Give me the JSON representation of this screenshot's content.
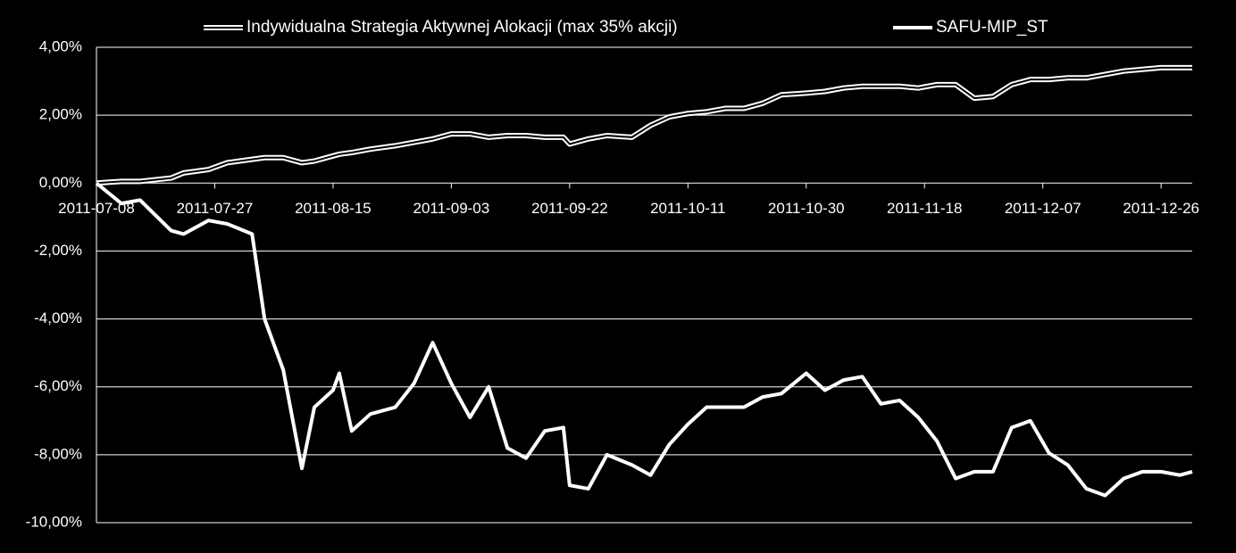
{
  "chart_data": {
    "type": "line",
    "background": "#000000",
    "x": [
      "2011-07-08",
      "2011-07-12",
      "2011-07-15",
      "2011-07-20",
      "2011-07-22",
      "2011-07-26",
      "2011-07-29",
      "2011-08-02",
      "2011-08-04",
      "2011-08-07",
      "2011-08-10",
      "2011-08-12",
      "2011-08-15",
      "2011-08-16",
      "2011-08-18",
      "2011-08-21",
      "2011-08-25",
      "2011-08-28",
      "2011-08-31",
      "2011-09-03",
      "2011-09-06",
      "2011-09-09",
      "2011-09-12",
      "2011-09-15",
      "2011-09-18",
      "2011-09-21",
      "2011-09-22",
      "2011-09-25",
      "2011-09-28",
      "2011-10-02",
      "2011-10-05",
      "2011-10-08",
      "2011-10-11",
      "2011-10-14",
      "2011-10-17",
      "2011-10-20",
      "2011-10-23",
      "2011-10-26",
      "2011-10-30",
      "2011-11-02",
      "2011-11-05",
      "2011-11-08",
      "2011-11-11",
      "2011-11-14",
      "2011-11-17",
      "2011-11-20",
      "2011-11-23",
      "2011-11-26",
      "2011-11-29",
      "2011-12-02",
      "2011-12-05",
      "2011-12-08",
      "2011-12-11",
      "2011-12-14",
      "2011-12-17",
      "2011-12-20",
      "2011-12-23",
      "2011-12-26",
      "2011-12-29",
      "2011-12-31"
    ],
    "series": [
      {
        "name": "Indywidualna Strategia Aktywnej Alokacji (max 35% akcji)",
        "color": "#ffffff",
        "line_style": "double",
        "values": [
          0,
          0.05,
          0.05,
          0.15,
          0.3,
          0.4,
          0.6,
          0.7,
          0.75,
          0.75,
          0.6,
          0.65,
          0.8,
          0.85,
          0.9,
          1.0,
          1.1,
          1.2,
          1.3,
          1.45,
          1.45,
          1.35,
          1.4,
          1.4,
          1.35,
          1.35,
          1.15,
          1.3,
          1.4,
          1.35,
          1.7,
          1.95,
          2.05,
          2.1,
          2.2,
          2.2,
          2.35,
          2.6,
          2.65,
          2.7,
          2.8,
          2.85,
          2.85,
          2.85,
          2.8,
          2.9,
          2.9,
          2.5,
          2.55,
          2.9,
          3.05,
          3.05,
          3.1,
          3.1,
          3.2,
          3.3,
          3.35,
          3.4,
          3.4,
          3.4
        ]
      },
      {
        "name": "SAFU-MIP_ST",
        "color": "#ffffff",
        "line_style": "solid",
        "values": [
          0,
          -0.6,
          -0.5,
          -1.4,
          -1.5,
          -1.1,
          -1.2,
          -1.5,
          -4.0,
          -5.5,
          -8.4,
          -6.6,
          -6.1,
          -5.6,
          -7.3,
          -6.8,
          -6.6,
          -5.9,
          -4.7,
          -5.9,
          -6.9,
          -6.0,
          -7.8,
          -8.1,
          -7.3,
          -7.2,
          -8.9,
          -9.0,
          -8.0,
          -8.3,
          -8.6,
          -7.7,
          -7.1,
          -6.6,
          -6.6,
          -6.6,
          -6.3,
          -6.2,
          -5.6,
          -6.1,
          -5.8,
          -5.7,
          -6.5,
          -6.4,
          -6.9,
          -7.6,
          -8.7,
          -8.5,
          -8.5,
          -7.2,
          -7.0,
          -7.95,
          -8.3,
          -9.0,
          -9.2,
          -8.7,
          -8.5,
          -8.5,
          -8.6,
          -8.5
        ]
      }
    ],
    "xlim": [
      "2011-07-08",
      "2011-12-31"
    ],
    "xticks": [
      "2011-07-08",
      "2011-07-27",
      "2011-08-15",
      "2011-09-03",
      "2011-09-22",
      "2011-10-11",
      "2011-10-30",
      "2011-11-18",
      "2011-12-07",
      "2011-12-26"
    ],
    "ylim": [
      -10,
      4
    ],
    "yticks": [
      {
        "value": -10,
        "label": "-10,00%"
      },
      {
        "value": -8,
        "label": "-8,00%"
      },
      {
        "value": -6,
        "label": "-6,00%"
      },
      {
        "value": -4,
        "label": "-4,00%"
      },
      {
        "value": -2,
        "label": "-2,00%"
      },
      {
        "value": 0,
        "label": "0,00%"
      },
      {
        "value": 2,
        "label": "2,00%"
      },
      {
        "value": 4,
        "label": "4,00%"
      }
    ],
    "grid": true,
    "legend": "top"
  }
}
